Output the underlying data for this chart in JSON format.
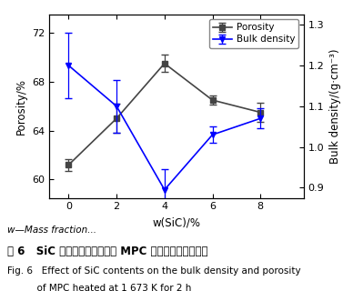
{
  "x": [
    0,
    2,
    4,
    6,
    8
  ],
  "porosity": [
    61.2,
    65.0,
    69.5,
    66.5,
    65.5
  ],
  "porosity_err": [
    0.5,
    1.2,
    0.7,
    0.4,
    0.8
  ],
  "bulk_density": [
    1.2,
    1.1,
    0.895,
    1.03,
    1.07
  ],
  "bulk_density_err": [
    0.08,
    0.065,
    0.05,
    0.02,
    0.025
  ],
  "x_label": "w(SiC)/%",
  "y_left_label": "Porosity/%",
  "y_right_label": "Bulk density/(g·cm⁻³)",
  "legend_porosity": "Porosity",
  "legend_bulk": "Bulk density",
  "xlim": [
    -0.8,
    9.8
  ],
  "ylim_left": [
    58.5,
    73.5
  ],
  "ylim_right": [
    0.875,
    1.325
  ],
  "yticks_left": [
    60,
    64,
    68,
    72
  ],
  "yticks_right": [
    0.9,
    1.0,
    1.1,
    1.2,
    1.3
  ],
  "xticks": [
    0,
    2,
    4,
    6,
    8
  ],
  "porosity_color": "#444444",
  "bulk_color": "#0000ff",
  "bg_color": "#ffffff",
  "note_line": "w—Mass fraction...",
  "fig_caption_cn": "图 6   SiC 加入量不同时所制备 MPC 的气孔率和体积密度",
  "fig_caption_en1": "Fig. 6   Effect of SiC contents on the bulk density and porosity",
  "fig_caption_en2": "          of MPC heated at 1 673 K for 2 h"
}
